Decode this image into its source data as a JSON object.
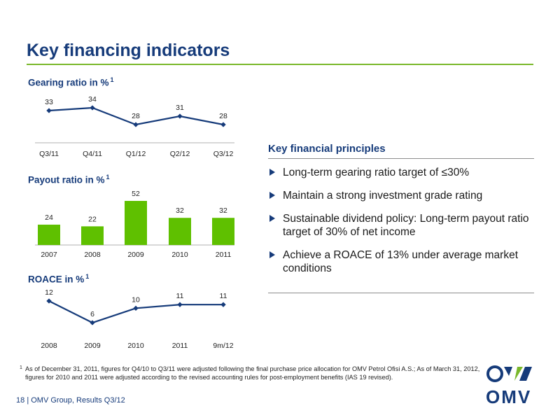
{
  "title": "Key financing indicators",
  "colors": {
    "brand_blue": "#163b7a",
    "accent_green": "#7ab82b",
    "bar_green": "#5fc000",
    "line_blue": "#163b7a"
  },
  "chart_data": [
    {
      "type": "line",
      "title": "Gearing ratio in %",
      "title_footnote": "1",
      "categories": [
        "Q3/11",
        "Q4/11",
        "Q1/12",
        "Q2/12",
        "Q3/12"
      ],
      "values": [
        33,
        34,
        28,
        31,
        28
      ],
      "grid": false,
      "ylim": [
        0,
        40
      ]
    },
    {
      "type": "bar",
      "title": "Payout ratio in %",
      "title_footnote": "1",
      "categories": [
        "2007",
        "2008",
        "2009",
        "2010",
        "2011"
      ],
      "values": [
        24,
        22,
        52,
        32,
        32
      ],
      "grid": false,
      "ylim": [
        0,
        52
      ]
    },
    {
      "type": "line",
      "title": "ROACE in %",
      "title_footnote": "1",
      "categories": [
        "2008",
        "2009",
        "2010",
        "2011",
        "9m/12"
      ],
      "values": [
        12,
        6,
        10,
        11,
        11
      ],
      "grid": false,
      "ylim": [
        6,
        12
      ]
    }
  ],
  "principles": {
    "title": "Key financial principles",
    "items": [
      "Long-term gearing ratio target of ≤30%",
      "Maintain a strong investment grade rating",
      "Sustainable dividend policy: Long-term payout ratio target of 30% of net income",
      "Achieve a ROACE of 13% under average market conditions"
    ]
  },
  "footnote": {
    "marker": "1",
    "text": "As of December 31, 2011, figures for Q4/10 to Q3/11 were adjusted following the final purchase price allocation for OMV Petrol Ofisi A.S.; As of March 31, 2012, figures for 2010 and 2011 were adjusted according to the revised accounting rules for post-employment benefits (IAS 19 revised)."
  },
  "footer": {
    "page": "18",
    "separator": "|",
    "text": "OMV Group, Results Q3/12"
  },
  "logo": {
    "text": "OMV",
    "icon": "omv-logo-icon"
  }
}
